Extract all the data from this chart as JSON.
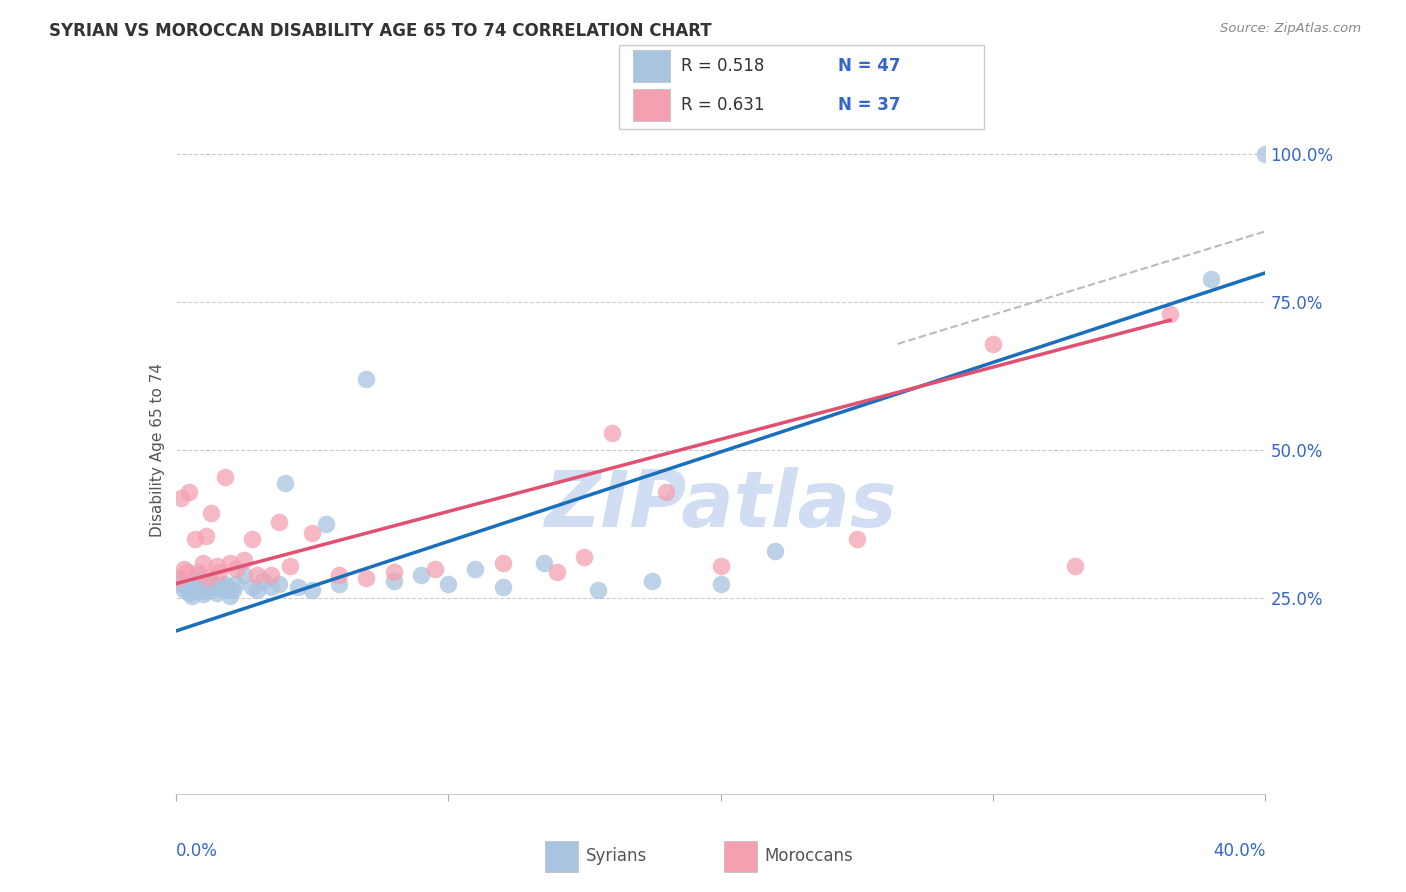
{
  "title": "SYRIAN VS MOROCCAN DISABILITY AGE 65 TO 74 CORRELATION CHART",
  "source": "Source: ZipAtlas.com",
  "ylabel": "Disability Age 65 to 74",
  "ytick_labels": [
    "25.0%",
    "50.0%",
    "75.0%",
    "100.0%"
  ],
  "ytick_positions": [
    0.25,
    0.5,
    0.75,
    1.0
  ],
  "xlim": [
    0.0,
    0.4
  ],
  "ylim": [
    -0.08,
    1.08
  ],
  "syrian_R": 0.518,
  "syrian_N": 47,
  "moroccan_R": 0.631,
  "moroccan_N": 37,
  "syrian_color": "#a8c4e0",
  "moroccan_color": "#f4a0b0",
  "syrian_line_color": "#1a6fbd",
  "moroccan_line_color": "#e05070",
  "watermark": "ZIPatlas",
  "watermark_color": "#c8d8f0",
  "syrian_scatter_x": [
    0.001,
    0.002,
    0.003,
    0.004,
    0.005,
    0.006,
    0.007,
    0.008,
    0.009,
    0.01,
    0.01,
    0.011,
    0.012,
    0.013,
    0.014,
    0.015,
    0.016,
    0.017,
    0.018,
    0.019,
    0.02,
    0.021,
    0.022,
    0.025,
    0.028,
    0.03,
    0.032,
    0.035,
    0.038,
    0.04,
    0.045,
    0.05,
    0.055,
    0.06,
    0.07,
    0.08,
    0.09,
    0.1,
    0.11,
    0.12,
    0.135,
    0.155,
    0.175,
    0.2,
    0.22,
    0.38,
    0.4
  ],
  "syrian_scatter_y": [
    0.275,
    0.28,
    0.265,
    0.27,
    0.26,
    0.255,
    0.285,
    0.29,
    0.272,
    0.268,
    0.258,
    0.262,
    0.275,
    0.28,
    0.27,
    0.26,
    0.268,
    0.272,
    0.275,
    0.265,
    0.255,
    0.265,
    0.275,
    0.29,
    0.27,
    0.265,
    0.28,
    0.27,
    0.275,
    0.445,
    0.27,
    0.265,
    0.375,
    0.275,
    0.62,
    0.28,
    0.29,
    0.275,
    0.3,
    0.27,
    0.31,
    0.265,
    0.28,
    0.275,
    0.33,
    0.79,
    1.0
  ],
  "moroccan_scatter_x": [
    0.001,
    0.002,
    0.003,
    0.004,
    0.005,
    0.007,
    0.008,
    0.01,
    0.011,
    0.012,
    0.013,
    0.015,
    0.016,
    0.018,
    0.02,
    0.022,
    0.025,
    0.028,
    0.03,
    0.035,
    0.038,
    0.042,
    0.05,
    0.06,
    0.07,
    0.08,
    0.095,
    0.12,
    0.14,
    0.15,
    0.16,
    0.18,
    0.2,
    0.25,
    0.3,
    0.33,
    0.365
  ],
  "moroccan_scatter_y": [
    0.285,
    0.42,
    0.3,
    0.295,
    0.43,
    0.35,
    0.295,
    0.31,
    0.355,
    0.285,
    0.395,
    0.305,
    0.295,
    0.455,
    0.31,
    0.3,
    0.315,
    0.35,
    0.29,
    0.29,
    0.38,
    0.305,
    0.36,
    0.29,
    0.285,
    0.295,
    0.3,
    0.31,
    0.295,
    0.32,
    0.53,
    0.43,
    0.305,
    0.35,
    0.68,
    0.305,
    0.73
  ],
  "syrian_line_x": [
    0.0,
    0.4
  ],
  "syrian_line_y": [
    0.195,
    0.8
  ],
  "moroccan_line_x": [
    0.0,
    0.365
  ],
  "moroccan_line_y": [
    0.275,
    0.72
  ],
  "dash_line_x": [
    0.265,
    0.4
  ],
  "dash_line_y": [
    0.68,
    0.87
  ]
}
